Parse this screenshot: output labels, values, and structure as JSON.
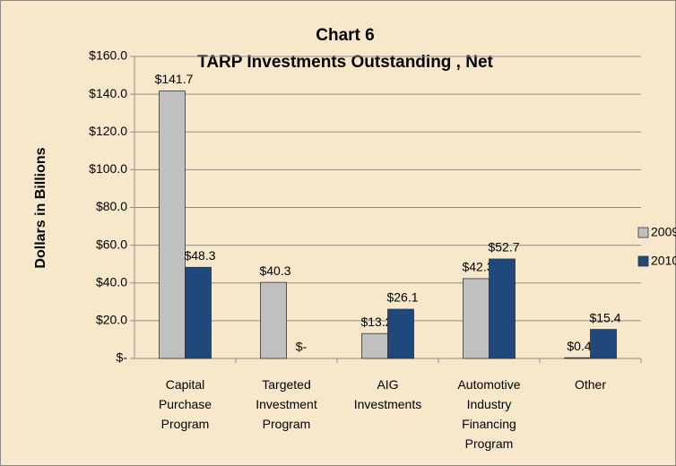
{
  "chart_data": {
    "type": "bar",
    "title": "Chart 6",
    "subtitle": "TARP Investments Outstanding , Net",
    "y_label": "Dollars in Billions",
    "categories": [
      "Capital Purchase Program",
      "Targeted Investment Program",
      "AIG Investments",
      "Automotive Industry Financing Program",
      "Other"
    ],
    "series": [
      {
        "name": "2009",
        "color": "#c0c0c0",
        "values": [
          141.7,
          40.3,
          13.2,
          42.3,
          0.4
        ],
        "value_labels": [
          "$141.7",
          "$40.3",
          "$13.2",
          "$42.3",
          "$0.4"
        ]
      },
      {
        "name": "2010",
        "color": "#1f497d",
        "values": [
          48.3,
          0,
          26.1,
          52.7,
          15.4
        ],
        "value_labels": [
          "$48.3",
          "$-",
          "$26.1",
          "$52.7",
          "$15.4"
        ]
      }
    ],
    "ylim": [
      0,
      160
    ],
    "yticks": [
      {
        "value": 0,
        "label": "$-"
      },
      {
        "value": 20,
        "label": "$20.0"
      },
      {
        "value": 40,
        "label": "$40.0"
      },
      {
        "value": 60,
        "label": "$60.0"
      },
      {
        "value": 80,
        "label": "$80.0"
      },
      {
        "value": 100,
        "label": "$100.0"
      },
      {
        "value": 120,
        "label": "$120.0"
      },
      {
        "value": 140,
        "label": "$140.0"
      },
      {
        "value": 160,
        "label": "$160.0"
      }
    ],
    "grid": true,
    "legend": "right"
  }
}
